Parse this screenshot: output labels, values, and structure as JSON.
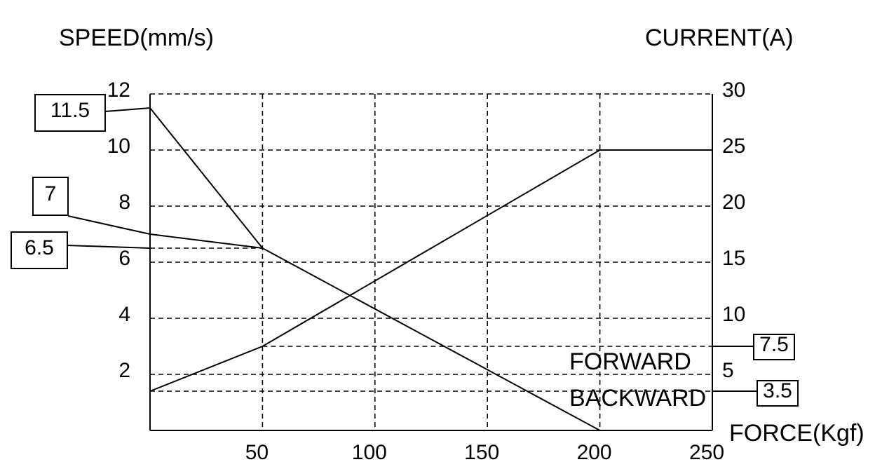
{
  "chart_data": {
    "type": "line",
    "y_label": "SPEED(mm/s)",
    "y2_label": "CURRENT(A)",
    "x_label": "FORCE(Kgf)",
    "xlim": [
      0,
      250
    ],
    "xticks": [
      50,
      100,
      150,
      200,
      250
    ],
    "ylim": [
      0,
      12
    ],
    "yticks": [
      2,
      4,
      6,
      8,
      10,
      12
    ],
    "y2lim": [
      0,
      30
    ],
    "y2ticks": [
      5,
      10,
      15,
      20,
      25,
      30
    ],
    "grid": true,
    "color": "#000000",
    "series": [
      {
        "x": [
          0,
          50,
          200
        ],
        "values": [
          11.5,
          6.5,
          0
        ]
      },
      {
        "x": [
          0,
          50
        ],
        "values": [
          7,
          6.5
        ]
      },
      {
        "x": [
          0,
          50,
          200,
          250
        ],
        "values": [
          3.5,
          7.5,
          25,
          25
        ],
        "axis": "y2"
      }
    ],
    "callouts": [
      {
        "axis": "y",
        "value": 11.5
      },
      {
        "axis": "y",
        "value": 7
      },
      {
        "axis": "y",
        "value": 6.5
      },
      {
        "axis": "y2",
        "value": 7.5
      },
      {
        "axis": "y2",
        "value": 3.5
      }
    ],
    "annotations": [
      "FORWARD",
      "BACKWARD"
    ]
  }
}
